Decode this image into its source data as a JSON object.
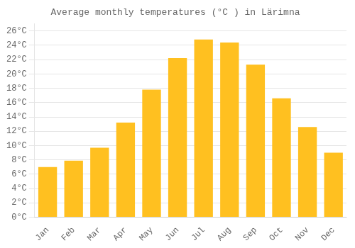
{
  "chart_data": {
    "type": "bar",
    "title": "Average monthly temperatures (°C ) in Lärimna",
    "categories": [
      "Jan",
      "Feb",
      "Mar",
      "Apr",
      "May",
      "Jun",
      "Jul",
      "Aug",
      "Sep",
      "Oct",
      "Nov",
      "Dec"
    ],
    "values": [
      7.0,
      7.9,
      9.7,
      13.2,
      17.8,
      22.2,
      24.8,
      24.4,
      21.3,
      16.6,
      12.6,
      9.0
    ],
    "color": "#FFC020",
    "ylim": [
      0,
      27
    ],
    "yticks": [
      {
        "value": 0,
        "label": "0°C"
      },
      {
        "value": 2,
        "label": "2°C"
      },
      {
        "value": 4,
        "label": "4°C"
      },
      {
        "value": 6,
        "label": "6°C"
      },
      {
        "value": 8,
        "label": "8°C"
      },
      {
        "value": 10,
        "label": "10°C"
      },
      {
        "value": 12,
        "label": "12°C"
      },
      {
        "value": 14,
        "label": "14°C"
      },
      {
        "value": 16,
        "label": "16°C"
      },
      {
        "value": 18,
        "label": "18°C"
      },
      {
        "value": 20,
        "label": "20°C"
      },
      {
        "value": 22,
        "label": "22°C"
      },
      {
        "value": 24,
        "label": "24°C"
      },
      {
        "value": 26,
        "label": "26°C"
      }
    ],
    "grid": true
  }
}
